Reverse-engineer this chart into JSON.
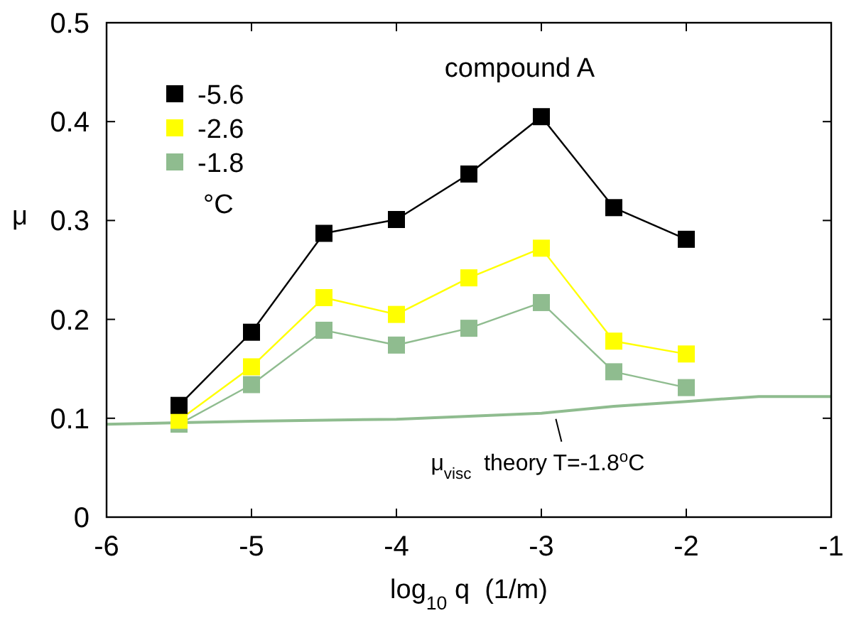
{
  "chart_data": {
    "type": "line",
    "title": "compound A",
    "xlabel": "log$_{10}$ q  (1/m)",
    "ylabel": "μ",
    "legend_title": "°C",
    "xlim": [
      -6,
      -1
    ],
    "ylim": [
      0,
      0.5
    ],
    "xticks": [
      -6,
      -5,
      -4,
      -3,
      -2,
      -1
    ],
    "yticks": [
      0,
      0.1,
      0.2,
      0.3,
      0.4,
      0.5
    ],
    "grid": false,
    "legend": "top left",
    "marker": "square",
    "line_style": "solid",
    "series": [
      {
        "name": "-5.6",
        "color": "#000000",
        "x": [
          -5.5,
          -5,
          -4.5,
          -4,
          -3.5,
          -3,
          -2.5,
          -2
        ],
        "values": [
          0.113,
          0.187,
          0.287,
          0.301,
          0.347,
          0.405,
          0.313,
          0.281
        ]
      },
      {
        "name": "-2.6",
        "color": "#ffff00",
        "x": [
          -5.5,
          -5,
          -4.5,
          -4,
          -3.5,
          -3,
          -2.5,
          -2
        ],
        "values": [
          0.098,
          0.152,
          0.222,
          0.205,
          0.242,
          0.272,
          0.178,
          0.165
        ]
      },
      {
        "name": "-1.8",
        "color": "#8fbc8f",
        "x": [
          -5.5,
          -5,
          -4.5,
          -4,
          -3.5,
          -3,
          -2.5,
          -2
        ],
        "values": [
          0.094,
          0.134,
          0.189,
          0.174,
          0.191,
          0.217,
          0.147,
          0.131
        ]
      },
      {
        "color": "#8fbc8f",
        "marker": "none",
        "x": [
          -6,
          -5,
          -4,
          -3,
          -2.5,
          -2,
          -1.5,
          -1
        ],
        "values": [
          0.094,
          0.097,
          0.099,
          0.105,
          0.112,
          0.117,
          0.122,
          0.122
        ]
      }
    ],
    "annotations": [
      {
        "text": "μ$_{visc}$  theory T=-1.8$^{o}$C",
        "x": -2.9,
        "y": 0.105
      }
    ]
  }
}
